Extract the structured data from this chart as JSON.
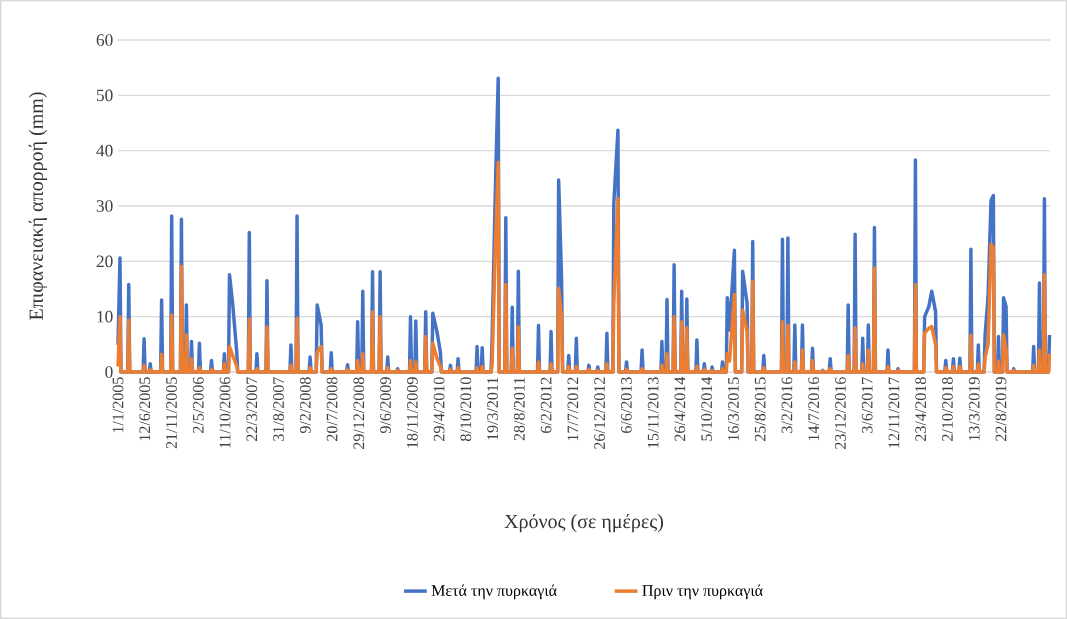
{
  "chart_data": {
    "type": "line",
    "xlabel": "Χρόνος (σε ημέρες)",
    "ylabel": "Επιφανειακή απορροή (mm)",
    "grid": "y",
    "legend": "bottom",
    "xlim": [
      "2005-01-01",
      "2020-06-14"
    ],
    "ylim": [
      0,
      60
    ],
    "yticks": [
      0,
      10,
      20,
      30,
      40,
      50,
      60
    ],
    "xticks": [
      {
        "value": "2005-01-01",
        "label": "1/1/2005"
      },
      {
        "value": "2005-06-12",
        "label": "12/6/2005"
      },
      {
        "value": "2005-11-21",
        "label": "21/11/2005"
      },
      {
        "value": "2006-05-02",
        "label": "2/5/2006"
      },
      {
        "value": "2006-10-11",
        "label": "11/10/2006"
      },
      {
        "value": "2007-03-22",
        "label": "22/3/2007"
      },
      {
        "value": "2007-08-31",
        "label": "31/8/2007"
      },
      {
        "value": "2008-02-09",
        "label": "9/2/2008"
      },
      {
        "value": "2008-07-20",
        "label": "20/7/2008"
      },
      {
        "value": "2008-12-29",
        "label": "29/12/2008"
      },
      {
        "value": "2009-06-09",
        "label": "9/6/2009"
      },
      {
        "value": "2009-11-18",
        "label": "18/11/2009"
      },
      {
        "value": "2010-04-29",
        "label": "29/4/2010"
      },
      {
        "value": "2010-10-08",
        "label": "8/10/2010"
      },
      {
        "value": "2011-03-19",
        "label": "19/3/2011"
      },
      {
        "value": "2011-08-28",
        "label": "28/8/2011"
      },
      {
        "value": "2012-02-06",
        "label": "6/2/2012"
      },
      {
        "value": "2012-07-17",
        "label": "17/7/2012"
      },
      {
        "value": "2012-12-26",
        "label": "26/12/2012"
      },
      {
        "value": "2013-06-06",
        "label": "6/6/2013"
      },
      {
        "value": "2013-11-15",
        "label": "15/11/2013"
      },
      {
        "value": "2014-04-26",
        "label": "26/4/2014"
      },
      {
        "value": "2014-10-05",
        "label": "5/10/2014"
      },
      {
        "value": "2015-03-16",
        "label": "16/3/2015"
      },
      {
        "value": "2015-08-25",
        "label": "25/8/2015"
      },
      {
        "value": "2016-02-03",
        "label": "3/2/2016"
      },
      {
        "value": "2016-07-14",
        "label": "14/7/2016"
      },
      {
        "value": "2016-12-23",
        "label": "23/12/2016"
      },
      {
        "value": "2017-06-03",
        "label": "3/6/2017"
      },
      {
        "value": "2017-11-12",
        "label": "12/11/2017"
      },
      {
        "value": "2018-04-23",
        "label": "23/4/2018"
      },
      {
        "value": "2018-10-02",
        "label": "2/10/2018"
      },
      {
        "value": "2019-03-13",
        "label": "13/3/2019"
      },
      {
        "value": "2019-08-22",
        "label": "22/8/2019"
      }
    ],
    "x": [
      "2005-01-01",
      "2005-01-13",
      "2005-01-19",
      "2005-03-01",
      "2005-03-07",
      "2005-03-13",
      "2005-06-02",
      "2005-06-08",
      "2005-06-14",
      "2005-07-09",
      "2005-07-15",
      "2005-07-21",
      "2005-09-16",
      "2005-09-22",
      "2005-09-28",
      "2005-11-16",
      "2005-11-22",
      "2005-11-28",
      "2006-01-14",
      "2006-01-20",
      "2006-01-26",
      "2006-02-13",
      "2006-02-19",
      "2006-02-25",
      "2006-03-16",
      "2006-03-22",
      "2006-03-28",
      "2006-05-03",
      "2006-05-09",
      "2006-05-15",
      "2006-07-15",
      "2006-07-21",
      "2006-07-27",
      "2006-10-01",
      "2006-10-07",
      "2006-10-13",
      "2006-11-01",
      "2006-11-07",
      "2006-11-26",
      "2006-12-21",
      "2006-12-27",
      "2007-03-01",
      "2007-03-07",
      "2007-03-13",
      "2007-04-16",
      "2007-04-22",
      "2007-04-28",
      "2007-06-16",
      "2007-06-22",
      "2007-06-28",
      "2007-11-08",
      "2007-11-14",
      "2007-11-20",
      "2007-12-15",
      "2007-12-21",
      "2007-12-27",
      "2008-03-03",
      "2008-03-09",
      "2008-03-15",
      "2008-04-15",
      "2008-04-21",
      "2008-05-15",
      "2008-05-21",
      "2008-07-09",
      "2008-07-15",
      "2008-07-21",
      "2008-10-16",
      "2008-10-22",
      "2008-10-28",
      "2008-12-16",
      "2008-12-22",
      "2008-12-28",
      "2009-01-16",
      "2009-01-22",
      "2009-01-28",
      "2009-03-16",
      "2009-03-22",
      "2009-03-28",
      "2009-05-01",
      "2009-05-07",
      "2009-05-13",
      "2009-06-16",
      "2009-06-22",
      "2009-06-28",
      "2009-08-15",
      "2009-08-21",
      "2009-08-27",
      "2009-11-01",
      "2009-11-07",
      "2009-11-13",
      "2009-12-03",
      "2009-12-09",
      "2009-12-15",
      "2010-02-01",
      "2010-02-07",
      "2010-02-13",
      "2010-03-16",
      "2010-03-22",
      "2010-04-16",
      "2010-05-07",
      "2010-05-13",
      "2010-07-01",
      "2010-07-07",
      "2010-07-13",
      "2010-08-16",
      "2010-08-22",
      "2010-08-28",
      "2010-12-09",
      "2010-12-15",
      "2010-12-21",
      "2011-01-09",
      "2011-01-15",
      "2011-01-21",
      "2011-03-10",
      "2011-03-16",
      "2011-04-04",
      "2011-04-22",
      "2011-04-28",
      "2011-06-01",
      "2011-06-07",
      "2011-06-13",
      "2011-07-10",
      "2011-07-16",
      "2011-07-22",
      "2011-08-16",
      "2011-08-22",
      "2011-08-28",
      "2011-12-16",
      "2011-12-22",
      "2011-12-28",
      "2012-03-01",
      "2012-03-07",
      "2012-03-13",
      "2012-04-16",
      "2012-04-22",
      "2012-05-10",
      "2012-05-16",
      "2012-06-16",
      "2012-06-22",
      "2012-06-28",
      "2012-08-01",
      "2012-08-07",
      "2012-08-13",
      "2012-10-16",
      "2012-10-22",
      "2012-10-28",
      "2012-12-09",
      "2012-12-15",
      "2012-12-21",
      "2013-02-02",
      "2013-02-08",
      "2013-02-14",
      "2013-03-16",
      "2013-03-22",
      "2013-04-16",
      "2013-04-22",
      "2013-06-01",
      "2013-06-07",
      "2013-06-13",
      "2013-09-03",
      "2013-09-09",
      "2013-09-15",
      "2014-01-01",
      "2014-01-07",
      "2014-01-13",
      "2014-02-01",
      "2014-02-07",
      "2014-02-13",
      "2014-03-16",
      "2014-03-22",
      "2014-03-28",
      "2014-05-01",
      "2014-05-07",
      "2014-05-13",
      "2014-06-01",
      "2014-06-07",
      "2014-06-13",
      "2014-08-01",
      "2014-08-07",
      "2014-08-13",
      "2014-09-15",
      "2014-09-21",
      "2014-09-27",
      "2014-11-01",
      "2014-11-07",
      "2014-11-13",
      "2015-01-03",
      "2015-01-09",
      "2015-01-15",
      "2015-02-01",
      "2015-02-07",
      "2015-02-21",
      "2015-03-22",
      "2015-03-28",
      "2015-05-05",
      "2015-05-11",
      "2015-06-07",
      "2015-06-13",
      "2015-07-05",
      "2015-07-11",
      "2015-07-17",
      "2015-09-10",
      "2015-09-16",
      "2015-09-22",
      "2016-01-01",
      "2016-01-07",
      "2016-01-13",
      "2016-02-03",
      "2016-02-09",
      "2016-02-15",
      "2016-03-16",
      "2016-03-22",
      "2016-03-28",
      "2016-05-01",
      "2016-05-07",
      "2016-05-13",
      "2016-07-01",
      "2016-07-07",
      "2016-07-13",
      "2016-09-01",
      "2016-09-07",
      "2016-09-13",
      "2016-10-16",
      "2016-10-22",
      "2016-10-28",
      "2017-02-02",
      "2017-02-08",
      "2017-02-14",
      "2017-03-16",
      "2017-03-22",
      "2017-03-28",
      "2017-05-01",
      "2017-05-07",
      "2017-05-13",
      "2017-06-04",
      "2017-06-10",
      "2017-06-16",
      "2017-07-11",
      "2017-07-17",
      "2017-07-23",
      "2017-10-01",
      "2017-10-07",
      "2017-10-13",
      "2017-12-01",
      "2017-12-07",
      "2017-12-13",
      "2018-03-16",
      "2018-03-22",
      "2018-03-28",
      "2018-05-11",
      "2018-05-17",
      "2018-06-11",
      "2018-06-29",
      "2018-07-22",
      "2018-07-28",
      "2018-09-16",
      "2018-09-22",
      "2018-09-28",
      "2018-11-01",
      "2018-11-07",
      "2018-11-13",
      "2018-12-10",
      "2018-12-16",
      "2018-12-22",
      "2019-02-15",
      "2019-02-21",
      "2019-02-27",
      "2019-04-01",
      "2019-04-07",
      "2019-04-13",
      "2019-05-12",
      "2019-05-18",
      "2019-06-05",
      "2019-06-23",
      "2019-07-07",
      "2019-07-13",
      "2019-08-01",
      "2019-08-07",
      "2019-08-13",
      "2019-09-01",
      "2019-09-07",
      "2019-09-22",
      "2019-09-28",
      "2019-11-01",
      "2019-11-07",
      "2019-11-13",
      "2020-03-01",
      "2020-03-07",
      "2020-03-13",
      "2020-04-05",
      "2020-04-11",
      "2020-04-17",
      "2020-05-05",
      "2020-05-11",
      "2020-05-17",
      "2020-06-05",
      "2020-06-11"
    ],
    "series": [
      {
        "name": "Μετά την πυρκαγιά",
        "color": "#4472c4",
        "values": [
          4.9,
          20.6,
          0,
          0,
          15.8,
          0,
          0,
          6,
          0,
          0,
          1.5,
          0,
          0,
          13,
          0,
          0,
          28.2,
          0,
          0,
          27.6,
          0,
          0,
          12.1,
          0,
          0,
          5.5,
          0,
          0,
          5.2,
          0,
          0,
          2.1,
          0,
          0,
          3.3,
          0,
          0,
          17.6,
          12.4,
          3.6,
          0,
          0,
          25.2,
          0,
          0,
          3.3,
          0,
          0,
          16.5,
          0,
          0,
          4.9,
          0,
          0,
          28.2,
          0,
          0,
          2.7,
          0,
          0,
          12.1,
          8.5,
          0,
          0,
          3.5,
          0,
          0,
          1.3,
          0,
          0,
          9.1,
          0,
          0,
          14.6,
          0,
          0,
          18.1,
          0,
          0,
          18.1,
          0,
          0,
          2.7,
          0,
          0,
          0.6,
          0,
          0,
          10,
          0,
          0,
          9.2,
          0,
          0,
          10.9,
          0,
          0,
          10.6,
          7.3,
          3.6,
          0,
          0,
          1.2,
          0,
          0,
          2.4,
          0,
          0,
          4.6,
          0,
          0,
          4.4,
          0,
          0,
          6,
          31.9,
          53.1,
          0,
          0,
          27.9,
          0,
          0,
          11.7,
          0,
          0,
          18.2,
          0,
          0,
          8.4,
          0,
          0,
          7.3,
          0,
          0,
          34.7,
          16.4,
          0,
          0,
          3,
          0,
          0,
          6.1,
          0,
          0,
          1.2,
          0,
          0,
          0.9,
          0,
          0,
          7,
          0,
          0,
          30.5,
          43.7,
          0,
          0,
          1.8,
          0,
          0,
          4,
          0,
          0,
          5.5,
          0,
          0,
          13.1,
          0,
          0,
          19.4,
          0,
          0,
          14.6,
          0,
          0,
          13.2,
          0,
          0,
          5.8,
          0,
          0,
          1.5,
          0,
          0,
          0.9,
          0,
          0,
          1.8,
          0,
          0,
          13.4,
          7.6,
          22,
          0,
          0,
          18.2,
          12.4,
          0,
          0,
          23.6,
          0,
          0,
          3,
          0,
          0,
          24,
          0,
          0,
          24.2,
          0,
          0,
          8.5,
          0,
          0,
          8.5,
          0,
          0,
          4.3,
          0,
          0,
          0.3,
          0,
          0,
          2.4,
          0,
          0,
          12.1,
          0,
          0,
          24.9,
          0,
          0,
          6.1,
          0,
          0,
          8.5,
          0,
          0,
          26.1,
          0,
          0,
          4,
          0,
          0,
          0.6,
          0,
          0,
          38.3,
          0,
          0,
          10,
          11.8,
          14.6,
          10.9,
          0,
          0,
          2.1,
          0,
          0,
          2.4,
          0,
          0,
          2.5,
          0,
          0,
          22.2,
          0,
          0,
          4.9,
          0,
          0,
          6.7,
          13.7,
          31,
          31.9,
          0,
          0,
          6.4,
          0,
          0,
          13.4,
          11.8,
          0,
          0,
          0.6,
          0,
          0,
          4.6,
          0,
          0,
          16.1,
          0,
          0,
          31.3,
          0,
          0,
          6.7
        ]
      },
      {
        "name": "Πριν την πυρκαγιά",
        "color": "#ed7d31",
        "values": [
          1,
          10,
          0,
          0,
          9.4,
          0,
          0,
          1.2,
          0,
          0,
          0.5,
          0,
          0,
          3.2,
          0,
          0,
          10.3,
          0,
          0,
          19.1,
          0,
          0,
          6.7,
          0,
          0,
          2.4,
          0,
          0,
          0.8,
          0,
          0,
          0.5,
          0,
          0,
          1.5,
          0,
          0,
          4.6,
          3,
          1,
          0,
          0,
          9.6,
          0,
          0,
          0.6,
          0,
          0,
          8.2,
          0,
          0,
          1.2,
          0,
          0,
          9.7,
          0,
          0,
          0.8,
          0,
          0,
          3.6,
          4.6,
          0,
          0,
          0.6,
          0,
          0,
          0.5,
          0,
          0,
          2.1,
          0,
          0,
          3.3,
          0,
          0,
          10.9,
          0,
          0,
          10,
          0,
          0,
          0.8,
          0,
          0,
          0.3,
          0,
          0,
          2.1,
          0,
          0,
          1.8,
          0,
          0,
          6.4,
          0,
          0,
          5.2,
          2.5,
          1,
          0,
          0,
          0.5,
          0,
          0,
          0.8,
          0,
          0,
          0.8,
          0,
          0,
          1,
          0,
          0,
          1.2,
          21.6,
          37.9,
          0,
          0,
          15.8,
          0,
          0,
          4.3,
          0,
          0,
          8.2,
          0,
          0,
          1.8,
          0,
          0,
          1.5,
          0,
          0,
          15.1,
          9.7,
          0,
          0,
          1,
          0,
          0,
          1,
          0,
          0,
          0.5,
          0,
          0,
          0.3,
          0,
          0,
          1.5,
          0,
          0,
          12.4,
          31.3,
          0,
          0,
          0.5,
          0,
          0,
          0.6,
          0,
          0,
          1.2,
          0,
          0,
          3.3,
          0,
          0,
          10,
          0,
          0,
          9.1,
          0,
          0,
          8,
          0,
          0,
          1,
          0,
          0,
          0.5,
          0,
          0,
          0.3,
          0,
          0,
          0.6,
          0,
          0,
          3.3,
          2,
          14,
          0,
          0,
          11.2,
          7.3,
          0,
          0,
          16.4,
          0,
          0,
          0.8,
          0,
          0,
          9.1,
          0,
          0,
          8.5,
          0,
          0,
          1.8,
          0,
          0,
          4,
          0,
          0,
          2.1,
          0,
          0,
          0.2,
          0,
          0,
          0.6,
          0,
          0,
          3,
          0,
          0,
          8,
          0,
          0,
          1.5,
          0,
          0,
          4,
          0,
          0,
          18.8,
          0,
          0,
          1,
          0,
          0,
          0.3,
          0,
          0,
          15.8,
          0,
          0,
          7,
          7.9,
          8.2,
          5,
          0,
          0,
          0.8,
          0,
          0,
          1,
          0,
          0,
          1,
          0,
          0,
          6.6,
          0,
          0,
          1.5,
          0,
          0,
          2.7,
          5,
          23.1,
          22.5,
          0,
          0,
          2,
          0,
          0,
          6.7,
          4,
          0,
          0,
          0.3,
          0,
          0,
          1.2,
          0,
          0,
          4,
          0,
          0,
          17.6,
          0,
          0,
          3.3
        ]
      }
    ]
  }
}
